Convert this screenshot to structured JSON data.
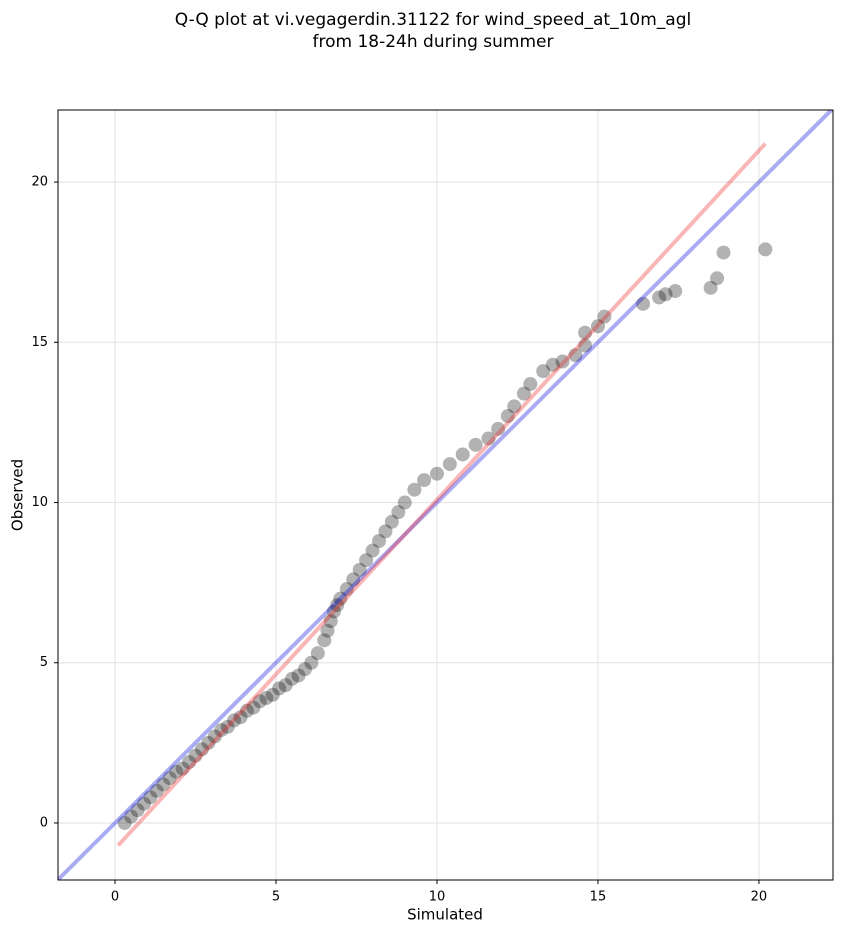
{
  "chart_data": {
    "type": "scatter",
    "title": [
      "Q-Q plot at vi.vegagerdin.31122 for wind_speed_at_10m_agl",
      "from 18-24h during summer"
    ],
    "x_label": "Simulated",
    "y_label": "Observed",
    "xlim": [
      -1.77,
      22.3
    ],
    "ylim": [
      -1.78,
      22.25
    ],
    "xticks": [
      0,
      5,
      10,
      15,
      20
    ],
    "yticks": [
      0,
      5,
      10,
      15,
      20
    ],
    "grid": true,
    "color": "#000000",
    "x": [
      0.3,
      0.5,
      0.7,
      0.9,
      1.1,
      1.3,
      1.5,
      1.7,
      1.9,
      2.1,
      2.3,
      2.5,
      2.7,
      2.9,
      3.1,
      3.3,
      3.5,
      3.7,
      3.9,
      4.1,
      4.3,
      4.5,
      4.7,
      4.9,
      5.1,
      5.3,
      5.5,
      5.7,
      5.9,
      6.1,
      6.3,
      6.5,
      6.6,
      6.7,
      6.8,
      6.9,
      7.0,
      7.2,
      7.4,
      7.6,
      7.8,
      8.0,
      8.2,
      8.4,
      8.6,
      8.8,
      9.0,
      9.3,
      9.6,
      10.0,
      10.4,
      10.8,
      11.2,
      11.6,
      11.9,
      12.2,
      12.4,
      12.7,
      12.9,
      13.3,
      13.6,
      13.9,
      14.3,
      14.6,
      14.6,
      15.0,
      15.2,
      16.4,
      16.9,
      17.1,
      17.4,
      18.5,
      18.7,
      18.9,
      20.2
    ],
    "y": [
      0.0,
      0.2,
      0.4,
      0.6,
      0.8,
      1.0,
      1.2,
      1.4,
      1.6,
      1.7,
      1.9,
      2.1,
      2.3,
      2.5,
      2.7,
      2.9,
      3.0,
      3.2,
      3.3,
      3.5,
      3.6,
      3.8,
      3.9,
      4.0,
      4.2,
      4.3,
      4.5,
      4.6,
      4.8,
      5.0,
      5.3,
      5.7,
      6.0,
      6.3,
      6.6,
      6.8,
      7.0,
      7.3,
      7.6,
      7.9,
      8.2,
      8.5,
      8.8,
      9.1,
      9.4,
      9.7,
      10.0,
      10.4,
      10.7,
      10.9,
      11.2,
      11.5,
      11.8,
      12.0,
      12.3,
      12.7,
      13.0,
      13.4,
      13.7,
      14.1,
      14.3,
      14.4,
      14.6,
      14.9,
      15.3,
      15.5,
      15.8,
      16.2,
      16.4,
      16.5,
      16.6,
      16.7,
      17.0,
      17.8,
      17.9
    ],
    "lines": [
      {
        "color": "#0000dd",
        "x": [
          -1.78,
          22.3
        ],
        "y": [
          -1.78,
          22.3
        ]
      },
      {
        "color": "#ee2222",
        "x": [
          0.1,
          20.2
        ],
        "y": [
          -0.7,
          21.2
        ]
      }
    ]
  }
}
